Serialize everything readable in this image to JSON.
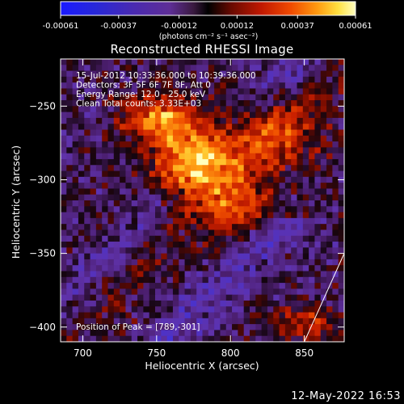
{
  "colorbar": {
    "tick_labels": [
      "-0.00061",
      "-0.00037",
      "-0.00012",
      "0.00012",
      "0.00037",
      "0.00061"
    ],
    "unit_label": "(photons cm⁻² s⁻¹ asec⁻²)"
  },
  "timestamp": "12-May-2022 16:53",
  "chart_data": {
    "type": "heatmap",
    "title": "Reconstructed RHESSI Image",
    "xlabel": "Heliocentric X (arcsec)",
    "ylabel": "Heliocentric Y (arcsec)",
    "xlim": [
      685,
      877
    ],
    "ylim": [
      -410,
      -218
    ],
    "x_ticks": [
      700,
      750,
      800,
      850
    ],
    "y_ticks": [
      -250,
      -300,
      -350,
      -400
    ],
    "x_tick_labels": [
      "700",
      "750",
      "800",
      "850"
    ],
    "y_tick_labels": [
      "−250",
      "−300",
      "−350",
      "−400"
    ],
    "colorbar_range": [
      -0.00061,
      0.00061
    ],
    "annotations": [
      "15-Jul-2012 10:33:36.000 to 10:39:36.000",
      "Detectors: 3F 5F 6F 7F 8F, Att 0",
      "Energy Range: 12.0 - 25.0 keV",
      "Clean     Total counts: 3.33E+03"
    ],
    "peak_label": "Position of Peak = [789,-301]",
    "peak_position": [
      789,
      -301
    ],
    "limb_line": [
      [
        850,
        -410
      ],
      [
        877,
        -350
      ]
    ]
  }
}
